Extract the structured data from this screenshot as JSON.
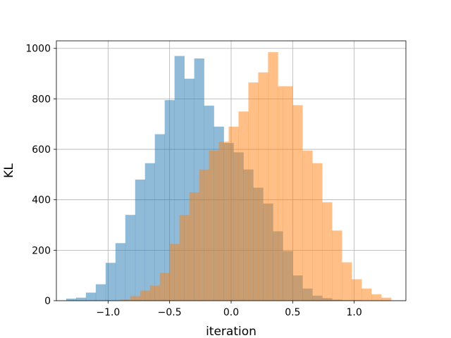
{
  "chart_data": {
    "type": "bar",
    "xlabel": "iteration",
    "ylabel": "KL",
    "xlim": [
      -1.42,
      1.42
    ],
    "ylim": [
      0,
      1030
    ],
    "grid": true,
    "xticks": [
      -1.0,
      -0.5,
      0.0,
      0.5,
      1.0
    ],
    "xtick_labels": [
      "−1.0",
      "−0.5",
      "0.0",
      "0.5",
      "1.0"
    ],
    "yticks": [
      0,
      200,
      400,
      600,
      800,
      1000
    ],
    "ytick_labels": [
      "0",
      "200",
      "400",
      "600",
      "800",
      "1000"
    ],
    "series": [
      {
        "color": "#1f77b4",
        "opacity": 0.5,
        "bin_edges": [
          -1.34,
          -1.26,
          -1.18,
          -1.1,
          -1.02,
          -0.94,
          -0.86,
          -0.78,
          -0.7,
          -0.62,
          -0.54,
          -0.46,
          -0.38,
          -0.3,
          -0.22,
          -0.14,
          -0.06,
          0.02,
          0.1,
          0.18,
          0.26,
          0.34,
          0.42,
          0.5,
          0.58,
          0.66,
          0.74,
          0.82,
          0.9,
          0.98,
          1.06
        ],
        "counts": [
          8,
          12,
          32,
          65,
          150,
          228,
          340,
          480,
          545,
          660,
          795,
          970,
          880,
          960,
          773,
          690,
          625,
          588,
          520,
          448,
          385,
          275,
          197,
          100,
          48,
          20,
          10,
          4,
          2,
          2
        ]
      },
      {
        "color": "#ff7f0e",
        "opacity": 0.5,
        "bin_edges": [
          -0.9,
          -0.82,
          -0.74,
          -0.66,
          -0.58,
          -0.5,
          -0.42,
          -0.34,
          -0.26,
          -0.18,
          -0.1,
          -0.02,
          0.06,
          0.14,
          0.22,
          0.3,
          0.38,
          0.42,
          0.5,
          0.58,
          0.66,
          0.74,
          0.82,
          0.9,
          0.98,
          1.06,
          1.14,
          1.22,
          1.3
        ],
        "counts": [
          5,
          18,
          40,
          60,
          110,
          225,
          340,
          430,
          520,
          595,
          630,
          690,
          750,
          865,
          905,
          985,
          850,
          850,
          775,
          595,
          545,
          390,
          278,
          152,
          85,
          48,
          25,
          12
        ]
      }
    ]
  }
}
